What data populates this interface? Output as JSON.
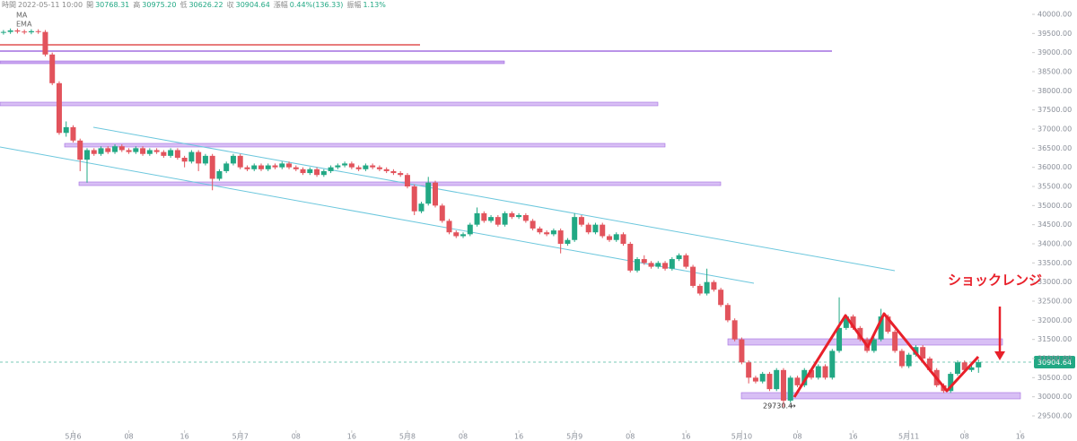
{
  "chart_data": {
    "type": "candlestick",
    "header": [
      [
        "時間",
        "2022-05-11 10:00"
      ],
      [
        "開",
        "30768.31"
      ],
      [
        "高",
        "30975.20"
      ],
      [
        "低",
        "30626.22"
      ],
      [
        "収",
        "30904.64"
      ],
      [
        "漲幅",
        "0.44%(136.33)"
      ],
      [
        "振幅",
        "1.13%"
      ]
    ],
    "indicators": [
      "MA",
      "EMA"
    ],
    "annotation": "ショックレンジ",
    "up_color": "#22a884",
    "down_color": "#e2535c",
    "xlim": [
      -10.5,
      137.7
    ],
    "ylim": [
      29125,
      40375
    ],
    "xticks": [
      {
        "value": 0,
        "label": "5月6"
      },
      {
        "value": 8,
        "label": "08"
      },
      {
        "value": 16,
        "label": "16"
      },
      {
        "value": 24,
        "label": "5月7"
      },
      {
        "value": 32,
        "label": "08"
      },
      {
        "value": 40,
        "label": "16"
      },
      {
        "value": 48,
        "label": "5月8"
      },
      {
        "value": 56,
        "label": "08"
      },
      {
        "value": 64,
        "label": "16"
      },
      {
        "value": 72,
        "label": "5月9"
      },
      {
        "value": 80,
        "label": "08"
      },
      {
        "value": 88,
        "label": "16"
      },
      {
        "value": 96,
        "label": "5月10"
      },
      {
        "value": 104,
        "label": "08"
      },
      {
        "value": 112,
        "label": "16"
      },
      {
        "value": 120,
        "label": "5月11"
      },
      {
        "value": 128,
        "label": "08"
      },
      {
        "value": 136,
        "label": "16"
      }
    ],
    "yticks": [
      {
        "value": 29500,
        "label": "29500.00"
      },
      {
        "value": 30000,
        "label": "30000.00"
      },
      {
        "value": 30500,
        "label": "30500.00"
      },
      {
        "value": 31000,
        "label": "31000.00"
      },
      {
        "value": 31500,
        "label": "31500.00"
      },
      {
        "value": 32000,
        "label": "32000.00"
      },
      {
        "value": 32500,
        "label": "32500.00"
      },
      {
        "value": 33000,
        "label": "33000.00"
      },
      {
        "value": 33500,
        "label": "33500.00"
      },
      {
        "value": 34000,
        "label": "34000.00"
      },
      {
        "value": 34500,
        "label": "34500.00"
      },
      {
        "value": 35000,
        "label": "35000.00"
      },
      {
        "value": 35500,
        "label": "35500.00"
      },
      {
        "value": 36000,
        "label": "36000.00"
      },
      {
        "value": 36500,
        "label": "36500.00"
      },
      {
        "value": 37000,
        "label": "37000.00"
      },
      {
        "value": 37500,
        "label": "37500.00"
      },
      {
        "value": 38000,
        "label": "38000.00"
      },
      {
        "value": 38500,
        "label": "38500.00"
      },
      {
        "value": 39000,
        "label": "39000.00"
      },
      {
        "value": 39500,
        "label": "39500.00"
      },
      {
        "value": 40000,
        "label": "40000.00"
      }
    ],
    "x": [
      -10,
      -9,
      -8,
      -7,
      -6,
      -5,
      -4,
      -3,
      -2,
      -1,
      0,
      1,
      2,
      3,
      4,
      5,
      6,
      7,
      8,
      9,
      10,
      11,
      12,
      13,
      14,
      15,
      16,
      17,
      18,
      19,
      20,
      21,
      22,
      23,
      24,
      25,
      26,
      27,
      28,
      29,
      30,
      31,
      32,
      33,
      34,
      35,
      36,
      37,
      38,
      39,
      40,
      41,
      42,
      43,
      44,
      45,
      46,
      47,
      48,
      49,
      50,
      51,
      52,
      53,
      54,
      55,
      56,
      57,
      58,
      59,
      60,
      61,
      62,
      63,
      64,
      65,
      66,
      67,
      68,
      69,
      70,
      71,
      72,
      73,
      74,
      75,
      76,
      77,
      78,
      79,
      80,
      81,
      82,
      83,
      84,
      85,
      86,
      87,
      88,
      89,
      90,
      91,
      92,
      93,
      94,
      95,
      96,
      97,
      98,
      99,
      100,
      101,
      102,
      103,
      104,
      105,
      106,
      107,
      108,
      109,
      110,
      111,
      112,
      113,
      114,
      115,
      116,
      117,
      118,
      119,
      120,
      121,
      122,
      123,
      124,
      125,
      126,
      127,
      128,
      129,
      130
    ],
    "open": [
      39520,
      39540,
      39580,
      39550,
      39530,
      39560,
      39540,
      38950,
      38200,
      36900,
      37050,
      36700,
      36200,
      36450,
      36350,
      36500,
      36400,
      36550,
      36450,
      36400,
      36500,
      36350,
      36450,
      36400,
      36300,
      36450,
      36250,
      36150,
      36400,
      36100,
      36300,
      35700,
      35900,
      36100,
      36300,
      36000,
      35950,
      36050,
      35950,
      36050,
      36000,
      36100,
      36000,
      35950,
      35850,
      35950,
      35800,
      35900,
      36000,
      36050,
      36100,
      36000,
      35950,
      36050,
      36000,
      35950,
      35900,
      35850,
      35800,
      35500,
      34850,
      35050,
      35600,
      35000,
      34600,
      34300,
      34200,
      34250,
      34500,
      34800,
      34600,
      34700,
      34500,
      34800,
      34700,
      34750,
      34600,
      34400,
      34300,
      34250,
      34350,
      34000,
      34100,
      34700,
      34500,
      34300,
      34500,
      34200,
      34100,
      34250,
      34000,
      33300,
      33600,
      33500,
      33400,
      33500,
      33350,
      33600,
      33700,
      33400,
      32900,
      32700,
      33000,
      32800,
      32400,
      32000,
      31500,
      30900,
      30500,
      30400,
      30600,
      30200,
      30700,
      29900,
      30500,
      30300,
      30700,
      30500,
      30800,
      30500,
      31200,
      31800,
      32100,
      31800,
      31500,
      31200,
      31500,
      32100,
      31700,
      31200,
      30800,
      31100,
      31300,
      31000,
      30700,
      30300,
      30150,
      30600,
      30900,
      30700,
      30768.31
    ],
    "high": [
      39590,
      39630,
      39630,
      39600,
      39610,
      39610,
      39590,
      39000,
      38250,
      37200,
      37100,
      36750,
      36500,
      36500,
      36550,
      36550,
      36600,
      36600,
      36500,
      36550,
      36550,
      36500,
      36500,
      36450,
      36500,
      36500,
      36300,
      36450,
      36450,
      36350,
      36350,
      35950,
      36150,
      36350,
      36350,
      36050,
      36100,
      36100,
      36100,
      36100,
      36150,
      36150,
      36050,
      36000,
      36000,
      36000,
      35950,
      36050,
      36100,
      36150,
      36150,
      36050,
      36100,
      36100,
      36050,
      36000,
      35950,
      35900,
      35850,
      35550,
      35100,
      35750,
      35650,
      35050,
      34650,
      34350,
      34300,
      34550,
      34950,
      34850,
      34750,
      34750,
      34850,
      34850,
      34800,
      34800,
      34650,
      34450,
      34350,
      34400,
      34400,
      34150,
      34800,
      34750,
      34550,
      34550,
      34550,
      34250,
      34300,
      34300,
      34050,
      33650,
      33700,
      33550,
      33550,
      33550,
      33650,
      33750,
      33750,
      33450,
      32950,
      33350,
      33050,
      32850,
      32450,
      32050,
      31550,
      30950,
      30550,
      30650,
      30650,
      30750,
      30750,
      30550,
      30550,
      30750,
      30750,
      30850,
      30850,
      31250,
      32600,
      32150,
      32150,
      31850,
      31550,
      31550,
      32300,
      32150,
      31750,
      31250,
      31150,
      31350,
      31350,
      31050,
      30750,
      30350,
      30650,
      30950,
      30950,
      30850,
      30975.2
    ],
    "low": [
      39470,
      39490,
      39500,
      39480,
      39480,
      39490,
      38900,
      38150,
      36850,
      36800,
      36650,
      35900,
      35600,
      36300,
      36300,
      36350,
      36350,
      36400,
      36350,
      36350,
      36300,
      36300,
      36350,
      36250,
      36250,
      36200,
      36000,
      36100,
      35900,
      36050,
      35400,
      35650,
      35850,
      36050,
      35950,
      35900,
      35900,
      35900,
      35900,
      35950,
      35950,
      35950,
      35900,
      35800,
      35800,
      35750,
      35750,
      35850,
      35950,
      36000,
      35950,
      35900,
      35900,
      35950,
      35900,
      35850,
      35800,
      35750,
      35450,
      34750,
      34800,
      35000,
      34950,
      34550,
      34250,
      34150,
      34150,
      34200,
      34450,
      34550,
      34550,
      34450,
      34450,
      34650,
      34650,
      34550,
      34350,
      34250,
      34200,
      34200,
      33750,
      33950,
      34050,
      34450,
      34250,
      34250,
      34150,
      34050,
      34050,
      33950,
      33250,
      33250,
      33450,
      33350,
      33350,
      33300,
      33300,
      33550,
      33350,
      32850,
      32650,
      32650,
      32750,
      32350,
      31950,
      31450,
      30850,
      30350,
      30350,
      30350,
      30150,
      30150,
      29730.4,
      29850,
      30250,
      30250,
      30450,
      30450,
      30450,
      30450,
      31150,
      31750,
      31750,
      31450,
      31150,
      31150,
      31450,
      31650,
      31150,
      30750,
      30750,
      31050,
      30950,
      30650,
      30250,
      30100,
      30100,
      30550,
      30650,
      30650,
      30626.22
    ],
    "close": [
      39540,
      39580,
      39550,
      39530,
      39560,
      39540,
      38950,
      38200,
      36900,
      37050,
      36700,
      36200,
      36450,
      36350,
      36500,
      36400,
      36550,
      36450,
      36400,
      36500,
      36350,
      36450,
      36400,
      36300,
      36450,
      36250,
      36150,
      36400,
      36100,
      36300,
      35700,
      35900,
      36100,
      36300,
      36000,
      35950,
      36050,
      35950,
      36050,
      36000,
      36100,
      36000,
      35950,
      35850,
      35950,
      35800,
      35900,
      36000,
      36050,
      36100,
      36000,
      35950,
      36050,
      36000,
      35950,
      35900,
      35850,
      35800,
      35500,
      34850,
      35050,
      35600,
      35000,
      34600,
      34300,
      34200,
      34250,
      34500,
      34800,
      34600,
      34700,
      34500,
      34800,
      34700,
      34750,
      34600,
      34400,
      34300,
      34250,
      34350,
      34000,
      34100,
      34700,
      34500,
      34300,
      34500,
      34200,
      34100,
      34250,
      34000,
      33300,
      33600,
      33500,
      33400,
      33500,
      33350,
      33600,
      33700,
      33400,
      32900,
      32700,
      33000,
      32800,
      32400,
      32000,
      31500,
      30900,
      30500,
      30400,
      30600,
      30200,
      30700,
      29900,
      30500,
      30300,
      30700,
      30500,
      30800,
      30500,
      31200,
      31800,
      32100,
      31800,
      31500,
      31200,
      31500,
      32100,
      31700,
      31200,
      30800,
      31100,
      31300,
      31000,
      30700,
      30300,
      30150,
      30600,
      30900,
      30700,
      30768.31,
      30904.64
    ]
  }
}
